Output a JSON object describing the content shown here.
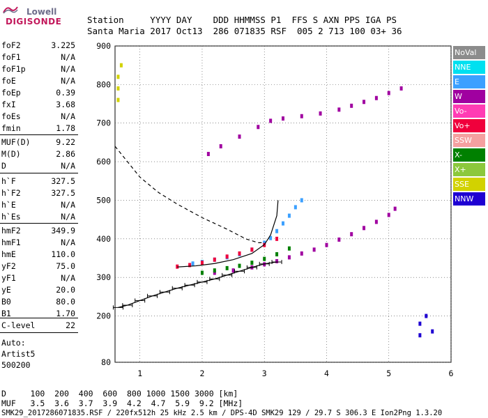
{
  "logo": {
    "top": "Lowell",
    "bottom": "DIGISONDE"
  },
  "header": {
    "row1": "Station     YYYY DAY    DDD HHMMSS P1  FFS S AXN PPS IGA PS",
    "row2": "Santa Maria 2017 Oct13  286 071835 RSF  005 2 713 100 03+ 36"
  },
  "params": [
    {
      "k": "foF2",
      "v": "3.225"
    },
    {
      "k": "foF1",
      "v": "N/A"
    },
    {
      "k": "foF1p",
      "v": "N/A"
    },
    {
      "k": "foE",
      "v": "N/A"
    },
    {
      "k": "foEp",
      "v": "0.39"
    },
    {
      "k": "fxI",
      "v": "3.68"
    },
    {
      "k": "foEs",
      "v": "N/A"
    },
    {
      "k": "fmin",
      "v": "1.78"
    },
    {
      "k": "MUF(D)",
      "v": "9.22"
    },
    {
      "k": "M(D)",
      "v": "2.86"
    },
    {
      "k": "D",
      "v": "N/A"
    },
    {
      "k": "h`F",
      "v": "327.5"
    },
    {
      "k": "h`F2",
      "v": "327.5"
    },
    {
      "k": "h`E",
      "v": "N/A"
    },
    {
      "k": "h`Es",
      "v": "N/A"
    },
    {
      "k": "hmF2",
      "v": "349.9"
    },
    {
      "k": "hmF1",
      "v": "N/A"
    },
    {
      "k": "hmE",
      "v": "110.0"
    },
    {
      "k": "yF2",
      "v": "75.0"
    },
    {
      "k": "yF1",
      "v": "N/A"
    },
    {
      "k": "yE",
      "v": "20.0"
    },
    {
      "k": "B0",
      "v": "80.0"
    },
    {
      "k": "B1",
      "v": "1.70"
    },
    {
      "k": "C-level",
      "v": "22"
    }
  ],
  "auto": [
    "Auto:",
    "Artist5",
    "500200"
  ],
  "legend": [
    {
      "label": "NoVal",
      "color": "#8c8c8c"
    },
    {
      "label": "NNE",
      "color": "#00e0f0"
    },
    {
      "label": "E",
      "color": "#3ca0ff"
    },
    {
      "label": "W",
      "color": "#a000a0"
    },
    {
      "label": "Vo-",
      "color": "#ff3cb4"
    },
    {
      "label": "Vo+",
      "color": "#f0003c"
    },
    {
      "label": "SSW",
      "color": "#f5a0a0"
    },
    {
      "label": "X-",
      "color": "#008000"
    },
    {
      "label": "X+",
      "color": "#8cc83c"
    },
    {
      "label": "SSE",
      "color": "#d2d200"
    },
    {
      "label": "NNW",
      "color": "#1e00d2"
    }
  ],
  "footer": {
    "d_row": "D     100  200  400  600  800 1000 1500 3000 [km]",
    "muf_row": "MUF   3.5  3.6  3.7  3.9  4.2  4.7  5.9  9.2 [MHz]",
    "file_row": "SMK29_2017286071835.RSF / 220fx512h 25 kHz 2.5 km / DPS-4D SMK29 129 / 29.7 S 306.3 E Ion2Png 1.3.20"
  },
  "chart_data": {
    "type": "scatter",
    "xlim": [
      0.6,
      6.0
    ],
    "ylim": [
      80,
      900
    ],
    "x_ticks": [
      1,
      2,
      3,
      4,
      5,
      6
    ],
    "y_ticks": [
      80,
      200,
      300,
      400,
      500,
      600,
      700,
      800,
      900
    ],
    "x_tick_labels": [
      "1",
      "2",
      "3",
      "4",
      "5",
      "6"
    ],
    "y_tick_labels": [
      "80",
      "200",
      "300",
      "400",
      "500",
      "600",
      "700",
      "800",
      "900"
    ],
    "grid": true,
    "legend_position": "right",
    "traces": [
      {
        "direction": "W",
        "x": [
          2.2,
          2.5,
          2.8,
          3.0,
          3.2,
          3.4,
          3.6,
          3.8,
          4.0,
          4.2,
          4.4,
          4.6,
          4.8,
          5.0,
          5.1
        ],
        "y": [
          312,
          318,
          326,
          334,
          342,
          352,
          362,
          372,
          384,
          398,
          412,
          428,
          444,
          462,
          478
        ]
      },
      {
        "direction": "E",
        "x": [
          1.85,
          2.0,
          2.2,
          2.4,
          2.6,
          2.8,
          3.0,
          3.1,
          3.2,
          3.3,
          3.4,
          3.5,
          3.6
        ],
        "y": [
          336,
          340,
          346,
          352,
          360,
          372,
          390,
          402,
          420,
          440,
          460,
          482,
          500
        ]
      },
      {
        "direction": "Vo+",
        "x": [
          1.6,
          1.8,
          2.0,
          2.2,
          2.4,
          2.6,
          2.8,
          3.0,
          3.2
        ],
        "y": [
          328,
          332,
          338,
          346,
          354,
          362,
          372,
          384,
          400
        ]
      },
      {
        "direction": "X-",
        "x": [
          2.0,
          2.2,
          2.4,
          2.6,
          2.8,
          3.0,
          3.2,
          3.4
        ],
        "y": [
          312,
          318,
          324,
          330,
          338,
          348,
          360,
          375
        ]
      },
      {
        "direction": "W",
        "x": [
          2.1,
          2.3,
          2.6,
          2.9,
          3.1,
          3.3,
          3.6,
          3.9,
          4.2,
          4.4,
          4.6,
          4.8,
          5.0,
          5.2
        ],
        "y": [
          620,
          640,
          665,
          690,
          706,
          712,
          718,
          725,
          735,
          745,
          755,
          765,
          778,
          790
        ]
      },
      {
        "direction": "SSE",
        "x": [
          0.65,
          0.65,
          0.65,
          0.7
        ],
        "y": [
          760,
          790,
          820,
          850
        ]
      },
      {
        "direction": "NNW",
        "x": [
          5.5,
          5.5,
          5.6,
          5.7
        ],
        "y": [
          180,
          150,
          200,
          160
        ]
      }
    ],
    "trace_curve": {
      "x": [
        1.6,
        1.9,
        2.2,
        2.5,
        2.8,
        3.0,
        3.1,
        3.2,
        3.22
      ],
      "y": [
        327,
        330,
        336,
        346,
        362,
        385,
        410,
        460,
        500
      ]
    },
    "virtual_height_dashed": {
      "x": [
        0.6,
        0.8,
        1.0,
        1.3,
        1.6,
        2.0,
        2.4,
        2.7,
        2.9,
        3.0
      ],
      "y": [
        640,
        600,
        560,
        520,
        490,
        455,
        425,
        400,
        390,
        390
      ]
    },
    "profile": {
      "x": [
        0.65,
        0.8,
        1.0,
        1.2,
        1.4,
        1.6,
        1.8,
        2.0,
        2.2,
        2.4,
        2.6,
        2.8,
        3.0,
        3.2
      ],
      "y": [
        222,
        228,
        240,
        252,
        262,
        272,
        280,
        288,
        296,
        306,
        316,
        326,
        335,
        340
      ]
    }
  }
}
